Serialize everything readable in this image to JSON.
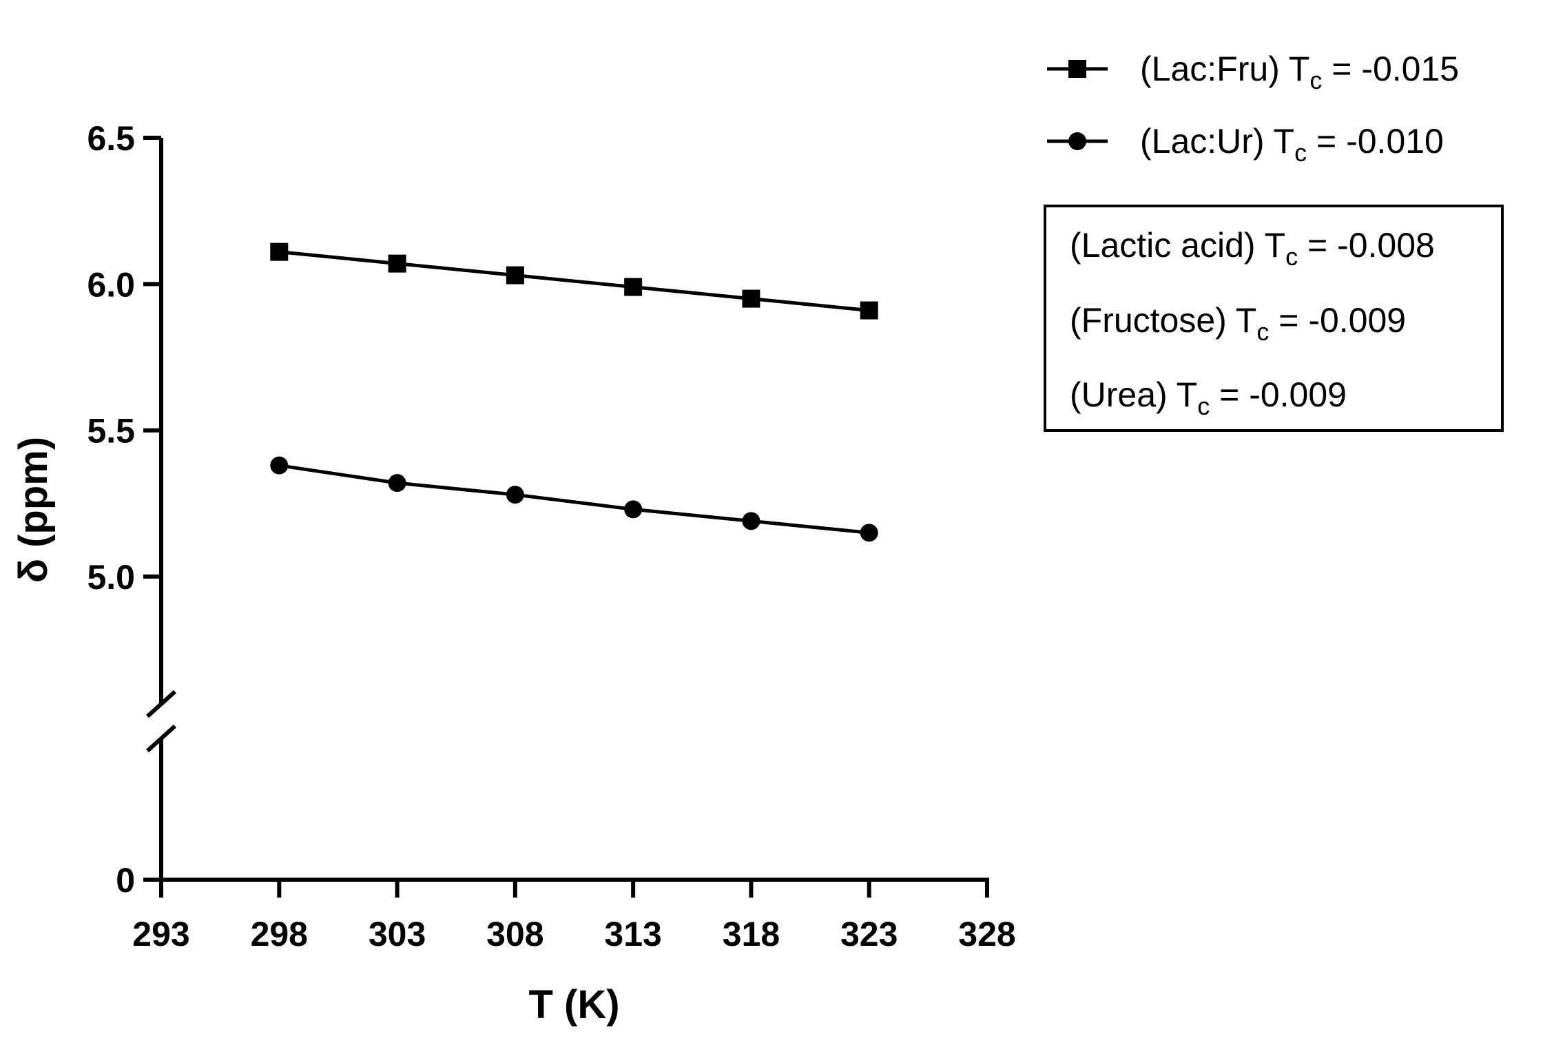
{
  "chart_data": {
    "type": "line",
    "xlabel": "T (K)",
    "ylabel": "δ (ppm)",
    "xlim": [
      293,
      328
    ],
    "ylim": [
      0,
      6.5
    ],
    "axis_break": {
      "axis": "y",
      "between": [
        0,
        4.8
      ]
    },
    "x_ticks": [
      "293",
      "298",
      "303",
      "308",
      "313",
      "318",
      "323",
      "328"
    ],
    "y_ticks": [
      "0",
      "5.0",
      "5.5",
      "6.0",
      "6.5"
    ],
    "grid": false,
    "legend_position": "top-right",
    "series": [
      {
        "name": "(Lac:Fru) T",
        "name_sub": "c",
        "name_tail": " = -0.015",
        "marker": "square",
        "color": "#000000",
        "x": [
          298,
          303,
          308,
          313,
          318,
          323
        ],
        "y": [
          6.11,
          6.07,
          6.03,
          5.99,
          5.95,
          5.91
        ]
      },
      {
        "name": "(Lac:Ur) T",
        "name_sub": "c",
        "name_tail": " = -0.010",
        "marker": "circle",
        "color": "#000000",
        "x": [
          298,
          303,
          308,
          313,
          318,
          323
        ],
        "y": [
          5.38,
          5.32,
          5.28,
          5.23,
          5.19,
          5.15
        ]
      }
    ],
    "annotations": [
      {
        "pre": "(Lactic acid) T",
        "sub": "c",
        "post": " = -0.008"
      },
      {
        "pre": "(Fructose) T",
        "sub": "c",
        "post": " = -0.009"
      },
      {
        "pre": "(Urea) T",
        "sub": "c",
        "post": " = -0.009"
      }
    ]
  }
}
